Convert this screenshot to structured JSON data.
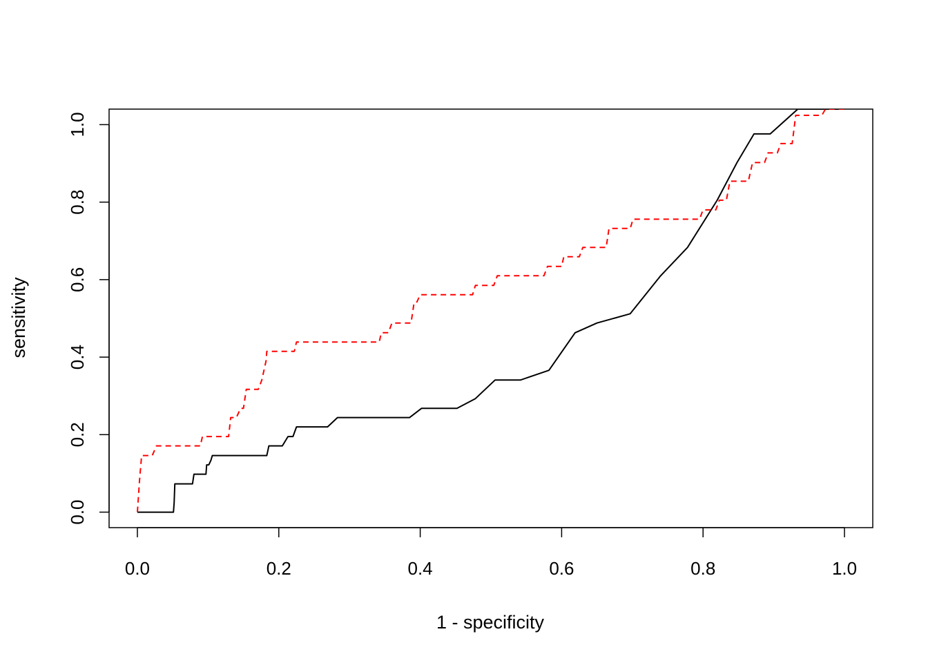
{
  "chart_data": {
    "type": "line",
    "title": "",
    "xlabel": "1 - specificity",
    "ylabel": "sensitivity",
    "xlim": [
      -0.04,
      1.04
    ],
    "ylim": [
      -0.04,
      1.04
    ],
    "xticks": [
      0.0,
      0.2,
      0.4,
      0.6,
      0.8,
      1.0
    ],
    "xtick_labels": [
      "0.0",
      "0.2",
      "0.4",
      "0.6",
      "0.8",
      "1.0"
    ],
    "yticks": [
      0.0,
      0.2,
      0.4,
      0.6,
      0.8,
      1.0
    ],
    "ytick_labels": [
      "0.0",
      "0.2",
      "0.4",
      "0.6",
      "0.8",
      "1.0"
    ],
    "grid": false,
    "legend": "none",
    "series": [
      {
        "style": "solid",
        "color": "#000000",
        "x": [
          0.0,
          0.051,
          0.052,
          0.053,
          0.078,
          0.08,
          0.097,
          0.098,
          0.101,
          0.104,
          0.106,
          0.183,
          0.186,
          0.205,
          0.213,
          0.22,
          0.225,
          0.269,
          0.283,
          0.385,
          0.402,
          0.452,
          0.478,
          0.506,
          0.542,
          0.582,
          0.619,
          0.65,
          0.697,
          0.74,
          0.778,
          0.82,
          0.848,
          0.872,
          0.895,
          0.934,
          1.0
        ],
        "y": [
          0.0,
          0.0,
          0.024,
          0.073,
          0.073,
          0.098,
          0.098,
          0.122,
          0.122,
          0.134,
          0.146,
          0.146,
          0.171,
          0.171,
          0.195,
          0.195,
          0.22,
          0.22,
          0.244,
          0.244,
          0.268,
          0.268,
          0.293,
          0.341,
          0.341,
          0.366,
          0.463,
          0.488,
          0.512,
          0.61,
          0.683,
          0.805,
          0.902,
          0.976,
          0.976,
          1.04,
          1.04
        ]
      },
      {
        "style": "dashed",
        "color": "#ff0000",
        "x": [
          0.0,
          0.003,
          0.006,
          0.021,
          0.027,
          0.089,
          0.092,
          0.129,
          0.132,
          0.14,
          0.146,
          0.15,
          0.154,
          0.171,
          0.176,
          0.182,
          0.183,
          0.222,
          0.225,
          0.342,
          0.345,
          0.355,
          0.36,
          0.387,
          0.391,
          0.394,
          0.4,
          0.474,
          0.478,
          0.504,
          0.509,
          0.575,
          0.58,
          0.6,
          0.603,
          0.625,
          0.63,
          0.663,
          0.667,
          0.697,
          0.701,
          0.795,
          0.8,
          0.818,
          0.823,
          0.833,
          0.838,
          0.864,
          0.87,
          0.887,
          0.892,
          0.905,
          0.91,
          0.926,
          0.931,
          0.968,
          0.973,
          1.0
        ],
        "y": [
          0.0,
          0.08,
          0.146,
          0.146,
          0.171,
          0.171,
          0.195,
          0.195,
          0.244,
          0.244,
          0.268,
          0.268,
          0.317,
          0.317,
          0.341,
          0.39,
          0.415,
          0.415,
          0.439,
          0.439,
          0.463,
          0.463,
          0.488,
          0.488,
          0.537,
          0.537,
          0.561,
          0.561,
          0.585,
          0.585,
          0.61,
          0.61,
          0.634,
          0.634,
          0.659,
          0.659,
          0.683,
          0.683,
          0.732,
          0.732,
          0.756,
          0.756,
          0.78,
          0.78,
          0.805,
          0.805,
          0.854,
          0.854,
          0.902,
          0.902,
          0.927,
          0.927,
          0.951,
          0.951,
          1.024,
          1.024,
          1.04,
          1.04
        ]
      }
    ]
  }
}
